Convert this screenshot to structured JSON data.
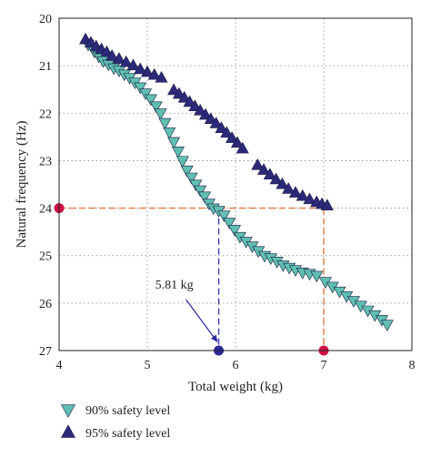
{
  "chart_data": {
    "type": "scatter",
    "title": "",
    "xlabel": "Total weight (kg)",
    "ylabel": "Natural frequency (Hz)",
    "xlim": [
      4,
      8
    ],
    "ylim": [
      20,
      27
    ],
    "y_inverted": true,
    "x_ticks": [
      4,
      5,
      6,
      7,
      8
    ],
    "y_ticks": [
      20,
      21,
      22,
      23,
      24,
      25,
      26,
      27
    ],
    "grid": "dotted",
    "legend_position": "bottom-left outside",
    "series": [
      {
        "name": "90% safety level",
        "marker": "triangle-down",
        "color": "#5fbfb2",
        "x": [
          4.33,
          4.4,
          4.45,
          4.5,
          4.56,
          4.62,
          4.68,
          4.74,
          4.8,
          4.86,
          4.92,
          4.98,
          5.04,
          5.1,
          5.15,
          5.2,
          5.25,
          5.3,
          5.35,
          5.4,
          5.45,
          5.5,
          5.55,
          5.6,
          5.65,
          5.7,
          5.75,
          5.81,
          5.87,
          5.93,
          5.99,
          6.05,
          6.12,
          6.19,
          6.26,
          6.33,
          6.4,
          6.47,
          6.54,
          6.61,
          6.68,
          6.76,
          6.84,
          6.92,
          7.02,
          7.1,
          7.18,
          7.26,
          7.34,
          7.42,
          7.5,
          7.58,
          7.66,
          7.72
        ],
        "y": [
          20.55,
          20.7,
          20.8,
          20.9,
          20.97,
          21.05,
          21.1,
          21.18,
          21.25,
          21.35,
          21.45,
          21.58,
          21.7,
          21.85,
          22.0,
          22.2,
          22.4,
          22.6,
          22.8,
          23.0,
          23.2,
          23.35,
          23.5,
          23.62,
          23.75,
          23.9,
          24.0,
          24.05,
          24.15,
          24.3,
          24.45,
          24.6,
          24.7,
          24.8,
          24.9,
          25.0,
          25.05,
          25.12,
          25.2,
          25.25,
          25.3,
          25.35,
          25.38,
          25.42,
          25.55,
          25.65,
          25.75,
          25.85,
          25.95,
          26.05,
          26.15,
          26.25,
          26.35,
          26.45
        ]
      },
      {
        "name": "95% safety level",
        "marker": "triangle-up",
        "color": "#2b2a7a",
        "x": [
          4.3,
          4.36,
          4.42,
          4.48,
          4.54,
          4.6,
          4.68,
          4.76,
          4.84,
          4.92,
          5.0,
          5.08,
          5.16,
          5.3,
          5.36,
          5.42,
          5.48,
          5.54,
          5.6,
          5.66,
          5.72,
          5.78,
          5.84,
          5.9,
          5.96,
          6.02,
          6.08,
          6.25,
          6.32,
          6.39,
          6.46,
          6.53,
          6.6,
          6.68,
          6.76,
          6.84,
          6.92,
          6.98,
          7.04
        ],
        "y": [
          20.45,
          20.52,
          20.6,
          20.66,
          20.72,
          20.8,
          20.86,
          20.93,
          21.0,
          21.08,
          21.14,
          21.2,
          21.26,
          21.52,
          21.6,
          21.68,
          21.77,
          21.86,
          21.95,
          22.04,
          22.13,
          22.22,
          22.32,
          22.42,
          22.53,
          22.63,
          22.75,
          23.1,
          23.2,
          23.3,
          23.4,
          23.5,
          23.6,
          23.68,
          23.75,
          23.82,
          23.88,
          23.92,
          23.95
        ]
      }
    ],
    "reference_lines": [
      {
        "type": "horizontal",
        "y": 24,
        "x_from": 4,
        "x_to": 7,
        "color": "#e07a40",
        "style": "dashed"
      },
      {
        "type": "vertical",
        "x": 7,
        "y_from": 24,
        "y_to": 27,
        "color": "#e07a40",
        "style": "dashed"
      },
      {
        "type": "vertical",
        "x": 5.81,
        "y_from": 24,
        "y_to": 27,
        "color": "#3a3ab0",
        "style": "dashed"
      }
    ],
    "highlight_points": [
      {
        "x": 4,
        "y": 24,
        "color": "#cc1144"
      },
      {
        "x": 7,
        "y": 27,
        "color": "#cc1144"
      },
      {
        "x": 5.81,
        "y": 27,
        "color": "#2b2a9a"
      }
    ],
    "annotation": {
      "text": "5.81 kg",
      "x": 5.81,
      "y": 27,
      "arrow_color": "#2b2a9a"
    }
  }
}
